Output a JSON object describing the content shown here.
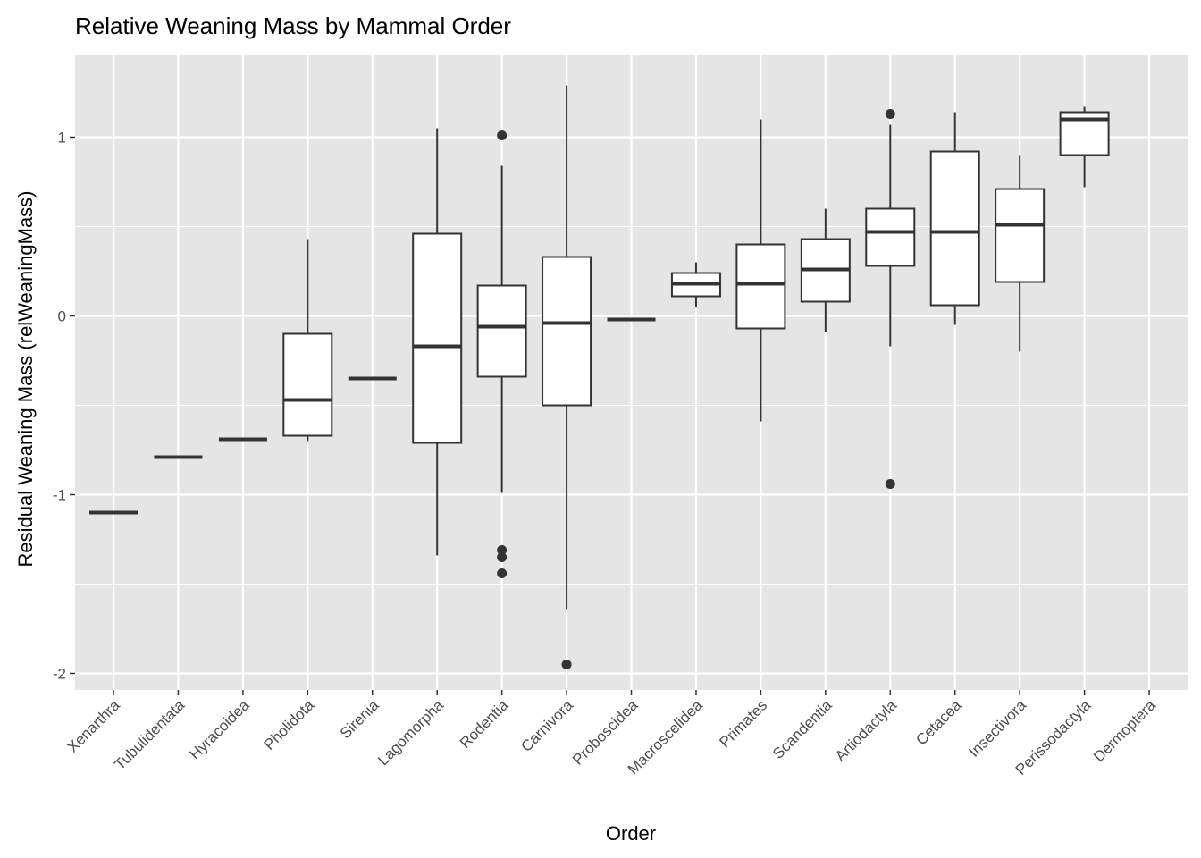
{
  "chart_data": {
    "type": "boxplot",
    "title": "Relative Weaning Mass by Mammal Order",
    "xlabel": "Order",
    "ylabel": "Residual Weaning Mass (relWeaningMass)",
    "ylim": [
      -2.1,
      1.45
    ],
    "yticks": [
      -2,
      -1,
      0,
      1
    ],
    "ytick_labels": [
      "-2",
      "-1",
      "0",
      "1"
    ],
    "grid": true,
    "categories": [
      "Xenarthra",
      "Tubulidentata",
      "Hyracoidea",
      "Pholidota",
      "Sirenia",
      "Lagomorpha",
      "Rodentia",
      "Carnivora",
      "Proboscidea",
      "Macroscelidea",
      "Primates",
      "Scandentia",
      "Artiodactyla",
      "Cetacea",
      "Insectivora",
      "Perissodactyla",
      "Dermoptera"
    ],
    "boxes": [
      {
        "category": "Xenarthra",
        "min": -1.1,
        "q1": -1.1,
        "median": -1.1,
        "q3": -1.1,
        "max": -1.1,
        "outliers": []
      },
      {
        "category": "Tubulidentata",
        "min": -0.79,
        "q1": -0.79,
        "median": -0.79,
        "q3": -0.79,
        "max": -0.79,
        "outliers": []
      },
      {
        "category": "Hyracoidea",
        "min": -0.69,
        "q1": -0.69,
        "median": -0.69,
        "q3": -0.69,
        "max": -0.69,
        "outliers": []
      },
      {
        "category": "Pholidota",
        "min": -0.7,
        "q1": -0.67,
        "median": -0.47,
        "q3": -0.1,
        "max": 0.43,
        "outliers": []
      },
      {
        "category": "Sirenia",
        "min": -0.35,
        "q1": -0.35,
        "median": -0.35,
        "q3": -0.35,
        "max": -0.35,
        "outliers": []
      },
      {
        "category": "Lagomorpha",
        "min": -1.34,
        "q1": -0.71,
        "median": -0.17,
        "q3": 0.46,
        "max": 1.05,
        "outliers": []
      },
      {
        "category": "Rodentia",
        "min": -0.99,
        "q1": -0.34,
        "median": -0.06,
        "q3": 0.17,
        "max": 0.84,
        "outliers": [
          1.01,
          -1.31,
          -1.35,
          -1.44
        ]
      },
      {
        "category": "Carnivora",
        "min": -1.64,
        "q1": -0.5,
        "median": -0.04,
        "q3": 0.33,
        "max": 1.29,
        "outliers": [
          -1.95
        ]
      },
      {
        "category": "Proboscidea",
        "min": -0.02,
        "q1": -0.02,
        "median": -0.02,
        "q3": -0.02,
        "max": -0.02,
        "outliers": []
      },
      {
        "category": "Macroscelidea",
        "min": 0.05,
        "q1": 0.11,
        "median": 0.18,
        "q3": 0.24,
        "max": 0.3,
        "outliers": []
      },
      {
        "category": "Primates",
        "min": -0.59,
        "q1": -0.07,
        "median": 0.18,
        "q3": 0.4,
        "max": 1.1,
        "outliers": []
      },
      {
        "category": "Scandentia",
        "min": -0.09,
        "q1": 0.08,
        "median": 0.26,
        "q3": 0.43,
        "max": 0.6,
        "outliers": []
      },
      {
        "category": "Artiodactyla",
        "min": -0.17,
        "q1": 0.28,
        "median": 0.47,
        "q3": 0.6,
        "max": 1.07,
        "outliers": [
          1.13,
          -0.94
        ]
      },
      {
        "category": "Cetacea",
        "min": -0.05,
        "q1": 0.06,
        "median": 0.47,
        "q3": 0.92,
        "max": 1.14,
        "outliers": []
      },
      {
        "category": "Insectivora",
        "min": -0.2,
        "q1": 0.19,
        "median": 0.51,
        "q3": 0.71,
        "max": 0.9,
        "outliers": []
      },
      {
        "category": "Perissodactyla",
        "min": 0.72,
        "q1": 0.9,
        "median": 1.1,
        "q3": 1.14,
        "max": 1.17,
        "outliers": []
      },
      {
        "category": "Dermoptera",
        "min": null,
        "q1": null,
        "median": null,
        "q3": null,
        "max": null,
        "outliers": []
      }
    ],
    "colors": {
      "panel_background": "#e5e5e5",
      "grid_line": "#ffffff",
      "box_fill": "#ffffff",
      "box_stroke": "#333333",
      "outlier": "#333333",
      "tick_label": "#4d4d4d",
      "text": "#000000"
    }
  }
}
